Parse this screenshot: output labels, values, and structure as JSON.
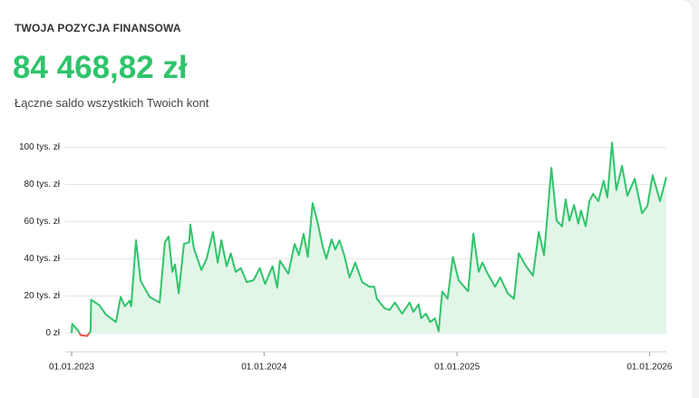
{
  "header": {
    "label": "TWOJA POZYCJA FINANSOWA",
    "amount": "84 468,82 zł",
    "caption": "Łączne saldo wszystkich Twoich kont"
  },
  "chart_data": {
    "type": "line",
    "color": "#2fc46b",
    "negative_color": "#e5534b",
    "fill_color": "#e2f6e8",
    "grid": true,
    "x": [
      "2023-01-01",
      "2023-01-02",
      "2023-01-13",
      "2023-01-18",
      "2023-01-30",
      "2023-02-06",
      "2023-02-07",
      "2023-02-23",
      "2023-03-07",
      "2023-03-26",
      "2023-04-04",
      "2023-04-12",
      "2023-04-21",
      "2023-04-24",
      "2023-05-03",
      "2023-05-12",
      "2023-05-20",
      "2023-05-29",
      "2023-06-17",
      "2023-06-27",
      "2023-07-04",
      "2023-07-11",
      "2023-07-16",
      "2023-07-23",
      "2023-08-02",
      "2023-08-12",
      "2023-08-14",
      "2023-08-21",
      "2023-09-04",
      "2023-09-14",
      "2023-09-26",
      "2023-10-05",
      "2023-10-12",
      "2023-10-22",
      "2023-10-30",
      "2023-11-08",
      "2023-11-18",
      "2023-11-29",
      "2023-12-12",
      "2023-12-24",
      "2024-01-03",
      "2024-01-17",
      "2024-01-26",
      "2024-01-31",
      "2024-02-16",
      "2024-02-28",
      "2024-03-07",
      "2024-03-16",
      "2024-03-24",
      "2024-04-02",
      "2024-04-10",
      "2024-04-21",
      "2024-04-28",
      "2024-05-08",
      "2024-05-15",
      "2024-05-23",
      "2024-06-01",
      "2024-06-11",
      "2024-06-22",
      "2024-07-05",
      "2024-07-19",
      "2024-07-28",
      "2024-08-02",
      "2024-08-16",
      "2024-08-26",
      "2024-09-05",
      "2024-09-19",
      "2024-10-03",
      "2024-10-10",
      "2024-10-20",
      "2024-10-25",
      "2024-11-03",
      "2024-11-11",
      "2024-11-20",
      "2024-11-27",
      "2024-12-04",
      "2024-12-14",
      "2024-12-24",
      "2025-01-04",
      "2025-01-22",
      "2025-02-01",
      "2025-02-11",
      "2025-02-18",
      "2025-02-28",
      "2025-03-14",
      "2025-03-24",
      "2025-04-07",
      "2025-04-19",
      "2025-04-28",
      "2025-05-12",
      "2025-05-25",
      "2025-06-05",
      "2025-06-15",
      "2025-06-29",
      "2025-07-09",
      "2025-07-19",
      "2025-07-26",
      "2025-08-02",
      "2025-08-11",
      "2025-08-19",
      "2025-08-24",
      "2025-09-02",
      "2025-09-09",
      "2025-09-16",
      "2025-09-26",
      "2025-10-06",
      "2025-10-13",
      "2025-10-22",
      "2025-10-30",
      "2025-11-10",
      "2025-11-20",
      "2025-12-04",
      "2025-12-18",
      "2025-12-28",
      "2026-01-07",
      "2026-01-21",
      "2026-02-02"
    ],
    "values": [
      0,
      5000,
      1500,
      -1000,
      -1500,
      1000,
      18000,
      15000,
      10000,
      6000,
      19500,
      14500,
      17500,
      14500,
      50000,
      28000,
      24000,
      19500,
      16500,
      49000,
      52000,
      33000,
      37000,
      21500,
      48000,
      49000,
      58500,
      45500,
      34000,
      40000,
      54500,
      38000,
      50000,
      36000,
      43000,
      33000,
      35000,
      27500,
      28500,
      35000,
      26500,
      36000,
      24500,
      39000,
      32000,
      48000,
      42000,
      53500,
      41000,
      70000,
      61500,
      47000,
      40000,
      50500,
      45000,
      50000,
      42000,
      30000,
      38000,
      27500,
      25000,
      25000,
      18500,
      13500,
      12500,
      16500,
      10500,
      16500,
      11500,
      15500,
      8000,
      10500,
      6000,
      8000,
      1000,
      22500,
      18500,
      41000,
      28500,
      22500,
      53500,
      33000,
      38000,
      32000,
      25000,
      30000,
      21500,
      18500,
      43000,
      36000,
      31000,
      54500,
      42000,
      89000,
      60500,
      57500,
      72000,
      60500,
      69000,
      59000,
      66000,
      57500,
      71000,
      75000,
      71000,
      82000,
      73000,
      102500,
      77000,
      90000,
      74000,
      83000,
      64500,
      68500,
      85000,
      71000,
      84000
    ],
    "xlim": [
      "2023-01-01",
      "2026-02-02"
    ],
    "xticks": [
      {
        "value": "2023-01-01",
        "label": "01.01.2023"
      },
      {
        "value": "2024-01-01",
        "label": "01.01.2024"
      },
      {
        "value": "2025-01-01",
        "label": "01.01.2025"
      },
      {
        "value": "2026-01-01",
        "label": "01.01.2026"
      }
    ],
    "ylim": [
      -10000,
      110000
    ],
    "yticks": [
      {
        "value": 0,
        "label": "0 zł"
      },
      {
        "value": 20000,
        "label": "20 tys. zł"
      },
      {
        "value": 40000,
        "label": "40 tys. zł"
      },
      {
        "value": 60000,
        "label": "60 tys. zł"
      },
      {
        "value": 80000,
        "label": "80 tys. zł"
      },
      {
        "value": 100000,
        "label": "100 tys. zł"
      }
    ]
  }
}
